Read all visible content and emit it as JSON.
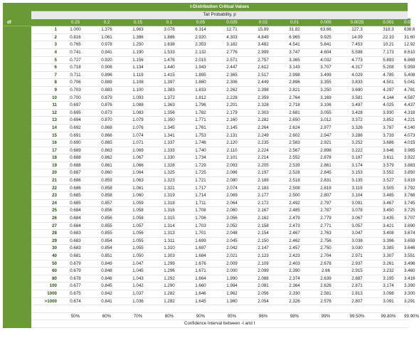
{
  "table": {
    "title": "t-Distribution Critical Values",
    "subtitle": "Tail Probability, p",
    "df_header": "df",
    "tail_probabilities": [
      "0.25",
      "0.2",
      "0.15",
      "0.1",
      "0.05",
      "0.025",
      "0.02",
      "0.01",
      "0.005",
      "0.0025",
      "0.001",
      "0.0005"
    ],
    "rows": [
      {
        "df": "1",
        "values": [
          "1.000",
          "1.376",
          "1.963",
          "3.078",
          "6.314",
          "12.71",
          "15.89",
          "31.82",
          "63.66",
          "127.3",
          "318.3",
          "636.6"
        ]
      },
      {
        "df": "2",
        "values": [
          "0.816",
          "1.061",
          "1.386",
          "1.886",
          "2.920",
          "4.303",
          "4.849",
          "6.965",
          "9.925",
          "14.09",
          "22.33",
          "31.60"
        ]
      },
      {
        "df": "3",
        "values": [
          "0.765",
          "0.978",
          "1.250",
          "1.638",
          "2.353",
          "3.182",
          "3.482",
          "4.541",
          "5.841",
          "7.453",
          "10.21",
          "12.92"
        ]
      },
      {
        "df": "4",
        "values": [
          "0.741",
          "0.941",
          "1.190",
          "1.533",
          "2.132",
          "2.776",
          "2.999",
          "3.747",
          "4.604",
          "5.598",
          "7.173",
          "8.610"
        ]
      },
      {
        "df": "5",
        "values": [
          "0.727",
          "0.920",
          "1.156",
          "1.476",
          "2.015",
          "2.571",
          "2.757",
          "3.365",
          "4.032",
          "4.773",
          "5.893",
          "6.869"
        ]
      },
      {
        "df": "6",
        "values": [
          "0.718",
          "0.906",
          "1.134",
          "1.440",
          "1.943",
          "2.447",
          "2.612",
          "3.143",
          "3.707",
          "4.317",
          "5.208",
          "5.959"
        ]
      },
      {
        "df": "7",
        "values": [
          "0.711",
          "0.896",
          "1.119",
          "1.415",
          "1.895",
          "2.365",
          "2.517",
          "2.998",
          "3.499",
          "4.029",
          "4.785",
          "5.408"
        ]
      },
      {
        "df": "8",
        "values": [
          "0.706",
          "0.889",
          "1.108",
          "1.397",
          "1.860",
          "2.306",
          "2.449",
          "2.896",
          "3.355",
          "3.833",
          "4.501",
          "5.041"
        ]
      },
      {
        "df": "9",
        "values": [
          "0.703",
          "0.883",
          "1.100",
          "1.383",
          "1.833",
          "2.262",
          "2.398",
          "2.821",
          "3.250",
          "3.690",
          "4.297",
          "4.781"
        ]
      },
      {
        "df": "10",
        "values": [
          "0.700",
          "0.879",
          "1.093",
          "1.372",
          "1.812",
          "2.228",
          "2.359",
          "2.764",
          "3.169",
          "3.581",
          "4.144",
          "4.587"
        ]
      },
      {
        "df": "11",
        "values": [
          "0.697",
          "0.876",
          "1.088",
          "1.363",
          "1.796",
          "2.201",
          "2.328",
          "2.718",
          "3.106",
          "3.497",
          "4.025",
          "4.437"
        ]
      },
      {
        "df": "12",
        "values": [
          "0.695",
          "0.873",
          "1.083",
          "1.356",
          "1.782",
          "2.179",
          "2.303",
          "2.681",
          "3.055",
          "3.428",
          "3.930",
          "4.318"
        ]
      },
      {
        "df": "13",
        "values": [
          "0.694",
          "0.870",
          "1.079",
          "1.350",
          "1.771",
          "2.160",
          "2.282",
          "2.650",
          "3.012",
          "3.372",
          "3.852",
          "4.221"
        ]
      },
      {
        "df": "14",
        "values": [
          "0.692",
          "0.868",
          "1.076",
          "1.345",
          "1.761",
          "2.145",
          "2.264",
          "2.624",
          "2.977",
          "3.326",
          "3.787",
          "4.140"
        ]
      },
      {
        "df": "15",
        "values": [
          "0.691",
          "0.866",
          "1.074",
          "1.341",
          "1.753",
          "2.131",
          "2.249",
          "2.602",
          "2.947",
          "3.286",
          "3.733",
          "4.073"
        ]
      },
      {
        "df": "16",
        "values": [
          "0.690",
          "0.865",
          "1.071",
          "1.337",
          "1.746",
          "2.120",
          "2.235",
          "2.583",
          "2.921",
          "3.252",
          "3.686",
          "4.015"
        ]
      },
      {
        "df": "17",
        "values": [
          "0.689",
          "0.863",
          "1.069",
          "1.333",
          "1.740",
          "2.110",
          "2.224",
          "2.567",
          "2.898",
          "3.222",
          "3.646",
          "3.965"
        ]
      },
      {
        "df": "18",
        "values": [
          "0.688",
          "0.862",
          "1.067",
          "1.330",
          "1.734",
          "2.101",
          "2.214",
          "2.552",
          "2.878",
          "3.197",
          "3.611",
          "3.922"
        ]
      },
      {
        "df": "19",
        "values": [
          "0.688",
          "0.861",
          "1.066",
          "1.328",
          "1.729",
          "2.093",
          "2.205",
          "2.539",
          "2.861",
          "3.174",
          "3.579",
          "3.883"
        ]
      },
      {
        "df": "20",
        "values": [
          "0.687",
          "0.860",
          "1.064",
          "1.325",
          "1.725",
          "2.086",
          "2.197",
          "2.528",
          "2.845",
          "3.153",
          "3.552",
          "3.850"
        ]
      },
      {
        "df": "21",
        "values": [
          "0.686",
          "0.859",
          "1.063",
          "1.323",
          "1.721",
          "2.080",
          "2.189",
          "2.518",
          "2.831",
          "3.135",
          "3.527",
          "3.819"
        ]
      },
      {
        "df": "22",
        "values": [
          "0.686",
          "0.858",
          "1.061",
          "1.321",
          "1.717",
          "2.074",
          "2.183",
          "2.508",
          "2.819",
          "3.119",
          "3.505",
          "3.792"
        ]
      },
      {
        "df": "23",
        "values": [
          "0.685",
          "0.858",
          "1.060",
          "1.319",
          "1.714",
          "2.069",
          "2.177",
          "2.500",
          "2.807",
          "3.104",
          "3.485",
          "3.768"
        ]
      },
      {
        "df": "24",
        "values": [
          "0.685",
          "0.857",
          "1.059",
          "1.318",
          "1.711",
          "2.064",
          "2.172",
          "2.492",
          "2.797",
          "3.091",
          "3.467",
          "3.745"
        ]
      },
      {
        "df": "25",
        "values": [
          "0.684",
          "0.856",
          "1.058",
          "1.316",
          "1.708",
          "2.060",
          "2.167",
          "2.485",
          "2.787",
          "3.078",
          "3.450",
          "3.725"
        ]
      },
      {
        "df": "26",
        "values": [
          "0.684",
          "0.856",
          "1.058",
          "1.315",
          "1.706",
          "2.056",
          "2.162",
          "2.479",
          "2.779",
          "3.067",
          "3.435",
          "3.707"
        ]
      },
      {
        "df": "27",
        "values": [
          "0.684",
          "0.855",
          "1.057",
          "1.314",
          "1.703",
          "2.052",
          "2.158",
          "2.473",
          "2.771",
          "3.057",
          "3.421",
          "3.690"
        ]
      },
      {
        "df": "28",
        "values": [
          "0.683",
          "0.855",
          "1.056",
          "1.313",
          "1.701",
          "2.048",
          "2.154",
          "2.467",
          "2.763",
          "3.047",
          "3.408",
          "3.674"
        ]
      },
      {
        "df": "29",
        "values": [
          "0.683",
          "0.854",
          "1.055",
          "1.311",
          "1.699",
          "2.045",
          "2.150",
          "2.462",
          "2.756",
          "3.038",
          "3.396",
          "3.659"
        ]
      },
      {
        "df": "30",
        "values": [
          "0.683",
          "0.854",
          "1.055",
          "1.310",
          "1.697",
          "2.042",
          "2.147",
          "2.457",
          "2.750",
          "3.030",
          "3.385",
          "3.646"
        ]
      },
      {
        "df": "40",
        "values": [
          "0.681",
          "0.851",
          "1.050",
          "1.303",
          "1.684",
          "2.021",
          "2.123",
          "2.423",
          "2.704",
          "2.971",
          "3.307",
          "3.551"
        ]
      },
      {
        "df": "50",
        "values": [
          "0.679",
          "0.849",
          "1.047",
          "1.299",
          "1.676",
          "2.009",
          "2.109",
          "2.403",
          "2.678",
          "2.937",
          "3.261",
          "3.496"
        ]
      },
      {
        "df": "60",
        "values": [
          "0.679",
          "0.848",
          "1.045",
          "1.296",
          "1.671",
          "2.000",
          "2.099",
          "2.390",
          "2.66",
          "2.915",
          "3.232",
          "3.460"
        ]
      },
      {
        "df": "80",
        "values": [
          "0.678",
          "0.846",
          "1.043",
          "1.292",
          "1.664",
          "1.990",
          "2.088",
          "2.374",
          "2.639",
          "2.887",
          "3.195",
          "3.416"
        ]
      },
      {
        "df": "100",
        "values": [
          "0.677",
          "0.845",
          "1.042",
          "1.290",
          "1.660",
          "1.984",
          "2.081",
          "2.364",
          "2.626",
          "2.871",
          "3.174",
          "3.390"
        ]
      },
      {
        "df": "1000",
        "values": [
          "0.675",
          "0.842",
          "1.037",
          "1.282",
          "1.646",
          "1.962",
          "2.056",
          "2.330",
          "2.581",
          "2.813",
          "3.098",
          "3.300"
        ]
      },
      {
        "df": ">1000",
        "values": [
          "0.674",
          "0.841",
          "1.036",
          "1.282",
          "1.645",
          "1.960",
          "2.054",
          "2.326",
          "2.576",
          "2.807",
          "3.091",
          "3.291"
        ]
      }
    ],
    "confidence_levels": [
      "50%",
      "60%",
      "70%",
      "80%",
      "90%",
      "95%",
      "96%",
      "98%",
      "99%",
      "99.50%",
      "99.80%",
      "99.90%"
    ],
    "confidence_caption": "Confidence Interval between -t and t"
  },
  "colors": {
    "header_green": "#6a9a36",
    "subheader_gray": "#e9e9e9",
    "df_text_green": "#2e4f11"
  }
}
